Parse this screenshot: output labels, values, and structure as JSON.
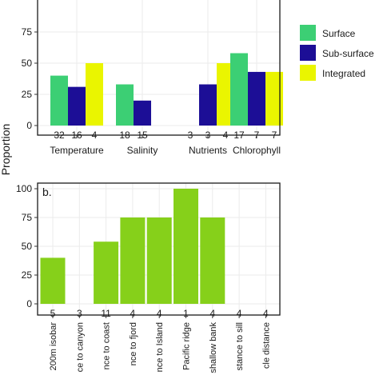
{
  "figure": {
    "ylabel": "Proportion"
  },
  "chart_data": [
    {
      "type": "bar",
      "panel": "a",
      "categories": [
        "Temperature",
        "Salinity",
        "Nutrients",
        "Chlorophyll"
      ],
      "series": [
        {
          "name": "Surface",
          "values": [
            40,
            33,
            0,
            58
          ],
          "counts": [
            "32",
            "18",
            "3",
            "17"
          ]
        },
        {
          "name": "Sub-surface",
          "values": [
            31,
            20,
            33,
            43
          ],
          "counts": [
            "16",
            "15",
            "3",
            "7"
          ]
        },
        {
          "name": "Integrated",
          "values": [
            50,
            null,
            50,
            43
          ],
          "counts": [
            "4",
            "",
            "4",
            "7"
          ]
        }
      ],
      "colors": [
        "#3ccf74",
        "#1c0e96",
        "#eaf500"
      ],
      "yticks": [
        0,
        25,
        50,
        75
      ],
      "ylim": [
        0,
        75
      ],
      "grid": true,
      "legend": "right"
    },
    {
      "type": "bar",
      "panel": "b",
      "panel_label": "b.",
      "categories": [
        "200m isobar",
        "ce to canyon",
        "nce to coast",
        "nce to fjord",
        "nce to Island",
        "Pacific ridge",
        "shallow bank",
        "stance to sill",
        "cle distance"
      ],
      "values": [
        40,
        0,
        54,
        75,
        75,
        100,
        75,
        0,
        0
      ],
      "counts": [
        "5",
        "3",
        "11",
        "4",
        "4",
        "1",
        "4",
        "4",
        "4"
      ],
      "color": "#86d01a",
      "yticks": [
        0,
        25,
        50,
        75,
        100
      ],
      "ylim": [
        0,
        100
      ],
      "grid": true
    }
  ]
}
